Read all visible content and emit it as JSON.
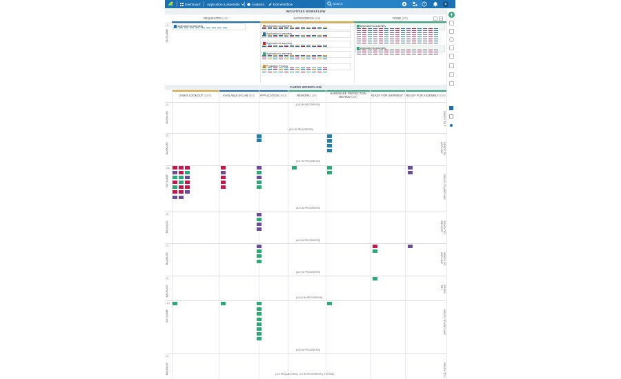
{
  "topbar": {
    "dashboard": "Dashboard",
    "board": "Application & assembly",
    "analytics": "Analytics",
    "edit_workflow": "Edit Workflow",
    "search_placeholder": "Search",
    "avatar": "B"
  },
  "initiatives": {
    "title": "INITIATIVES WORKFLOW",
    "columns": [
      {
        "label": "REQUESTED",
        "count": "(1/8)"
      },
      {
        "label": "IN PROGRESS",
        "count": "(5/6)"
      },
      {
        "label": "DONE",
        "count": "(2/8)"
      }
    ],
    "lane_label": "OUTCOME",
    "lane_count": "(2)",
    "cards": [
      {
        "col": "requested",
        "title": "Application & assembly",
        "color": "#1b6fb3"
      },
      {
        "col": "progress",
        "title": "Application & assembly",
        "color": "#e08a2b"
      },
      {
        "col": "progress",
        "title": "Application & assembly",
        "color": "#1b6fb3"
      },
      {
        "col": "progress",
        "title": "Application & assembly",
        "color": "#c2184b"
      },
      {
        "col": "progress",
        "title": "Application & assembly",
        "color": "#2aa876"
      },
      {
        "col": "progress",
        "title": "Production Process",
        "color": "#e08a2b"
      },
      {
        "col": "done",
        "title": "Application & assembly",
        "color": "#2aa876"
      },
      {
        "col": "done",
        "title": "Application & assembly",
        "color": "#2aa876"
      }
    ]
  },
  "cards_workflow": {
    "title": "CARDS WORKFLOW",
    "columns": [
      {
        "label": "3 WKS LOOKOUT",
        "count": "(22/0)"
      },
      {
        "label": "AVAILABLE IN LAB",
        "count": "(6/3)"
      },
      {
        "label": "APPLICATION",
        "count": "(26/3)"
      },
      {
        "label": "REWORK",
        "count": "(1/8)"
      },
      {
        "label": "HARDWARE PERFECTION REVIEW",
        "count": "(3/8)"
      },
      {
        "label": "READY FOR SHIPMENT",
        "count": "(2/8)"
      },
      {
        "label": "READY FOR ASSEMBLY",
        "count": "(0/4)"
      }
    ],
    "lanes": [
      {
        "count": "(2)",
        "left": "BACKLOG",
        "right": "READY TO T",
        "progress": "(0/3 IN PROGRESS)",
        "progress2": "(3/3 IN PROGRESS)"
      },
      {
        "count": "(3)",
        "left": "BACKLOG",
        "right": "READY TO ARCHIVE",
        "progress": "(0/5 IN PROGRESS)"
      },
      {
        "count": "(33)",
        "left": "OUTCOME",
        "right": "READY TO ARCHIVE",
        "progress": "(4/3 IN PROGRESS)"
      },
      {
        "count": "(3)",
        "left": "BACKLOG",
        "right": "READY TO ARCHIVE",
        "progress": "(4/0 IN PROGRESS)"
      },
      {
        "count": "(7)",
        "left": "BACKLOG",
        "right": "READY TO ARCHIVE",
        "progress": "(6/0 IN PROGRESS)"
      },
      {
        "count": "(3)",
        "left": "BACKLOG",
        "right": "READY TO L",
        "progress": "(1/3/0 IN PROGRESS)"
      },
      {
        "count": "(11)",
        "left": "OUTCOME",
        "right": "READY TO ARCHIVE",
        "progress": "(0/0 IN PROGRESS)"
      },
      {
        "count": "(0)",
        "left": "BACKLOG",
        "right": "READY TO L",
        "progress": "(1/3 REQUESTED | 1/3 IN PROGRESS | 0 DONE)"
      }
    ]
  },
  "colors": {
    "brand": "#1b6fb3",
    "green": "#2aa876",
    "red": "#c2184b",
    "purple": "#6b4c9a",
    "teal": "#1f7fa8",
    "orange": "#e08a2b"
  }
}
